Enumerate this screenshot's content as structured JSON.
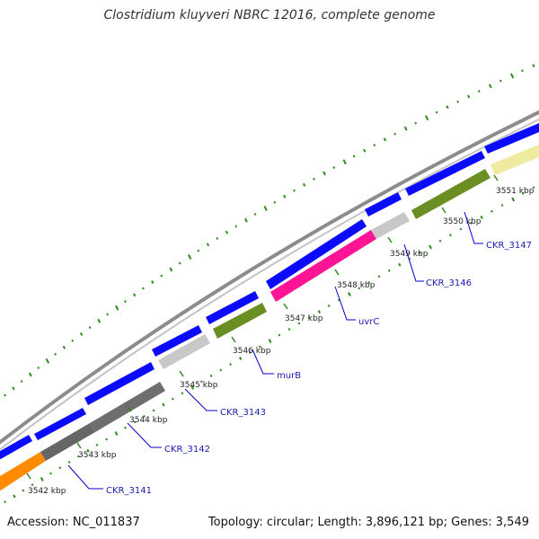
{
  "title": "Clostridium kluyveri NBRC 12016, complete genome",
  "footer": {
    "accession": "Accession: NC_011837",
    "summary": "Topology: circular; Length: 3,896,121 bp; Genes: 3,549"
  },
  "kbp_labels": [
    "3542 kbp",
    "3543 kbp",
    "3544 kbp",
    "3545 kbp",
    "3546 kbp",
    "3547 kbp",
    "3548 kbp",
    "3549 kbp",
    "3550 kbp",
    "3551 kbp"
  ],
  "gene_labels": [
    "CKR_3141",
    "CKR_3142",
    "CKR_3143",
    "murB",
    "uvrC",
    "CKR_3146",
    "CKR_3147"
  ],
  "colors": {
    "backbone": "#8c8c8c",
    "forward_gene": "#0a0aff",
    "label_line": "#0000cc",
    "gc_ticks": "#2e8b1e",
    "feature_fills": [
      "#ff8c00",
      "#666666",
      "#6e6e6e",
      "#c8c8c8",
      "#6b8e23",
      "#ff1493",
      "#c8c8c8",
      "#6b8e23",
      "#eeeaa0"
    ]
  }
}
